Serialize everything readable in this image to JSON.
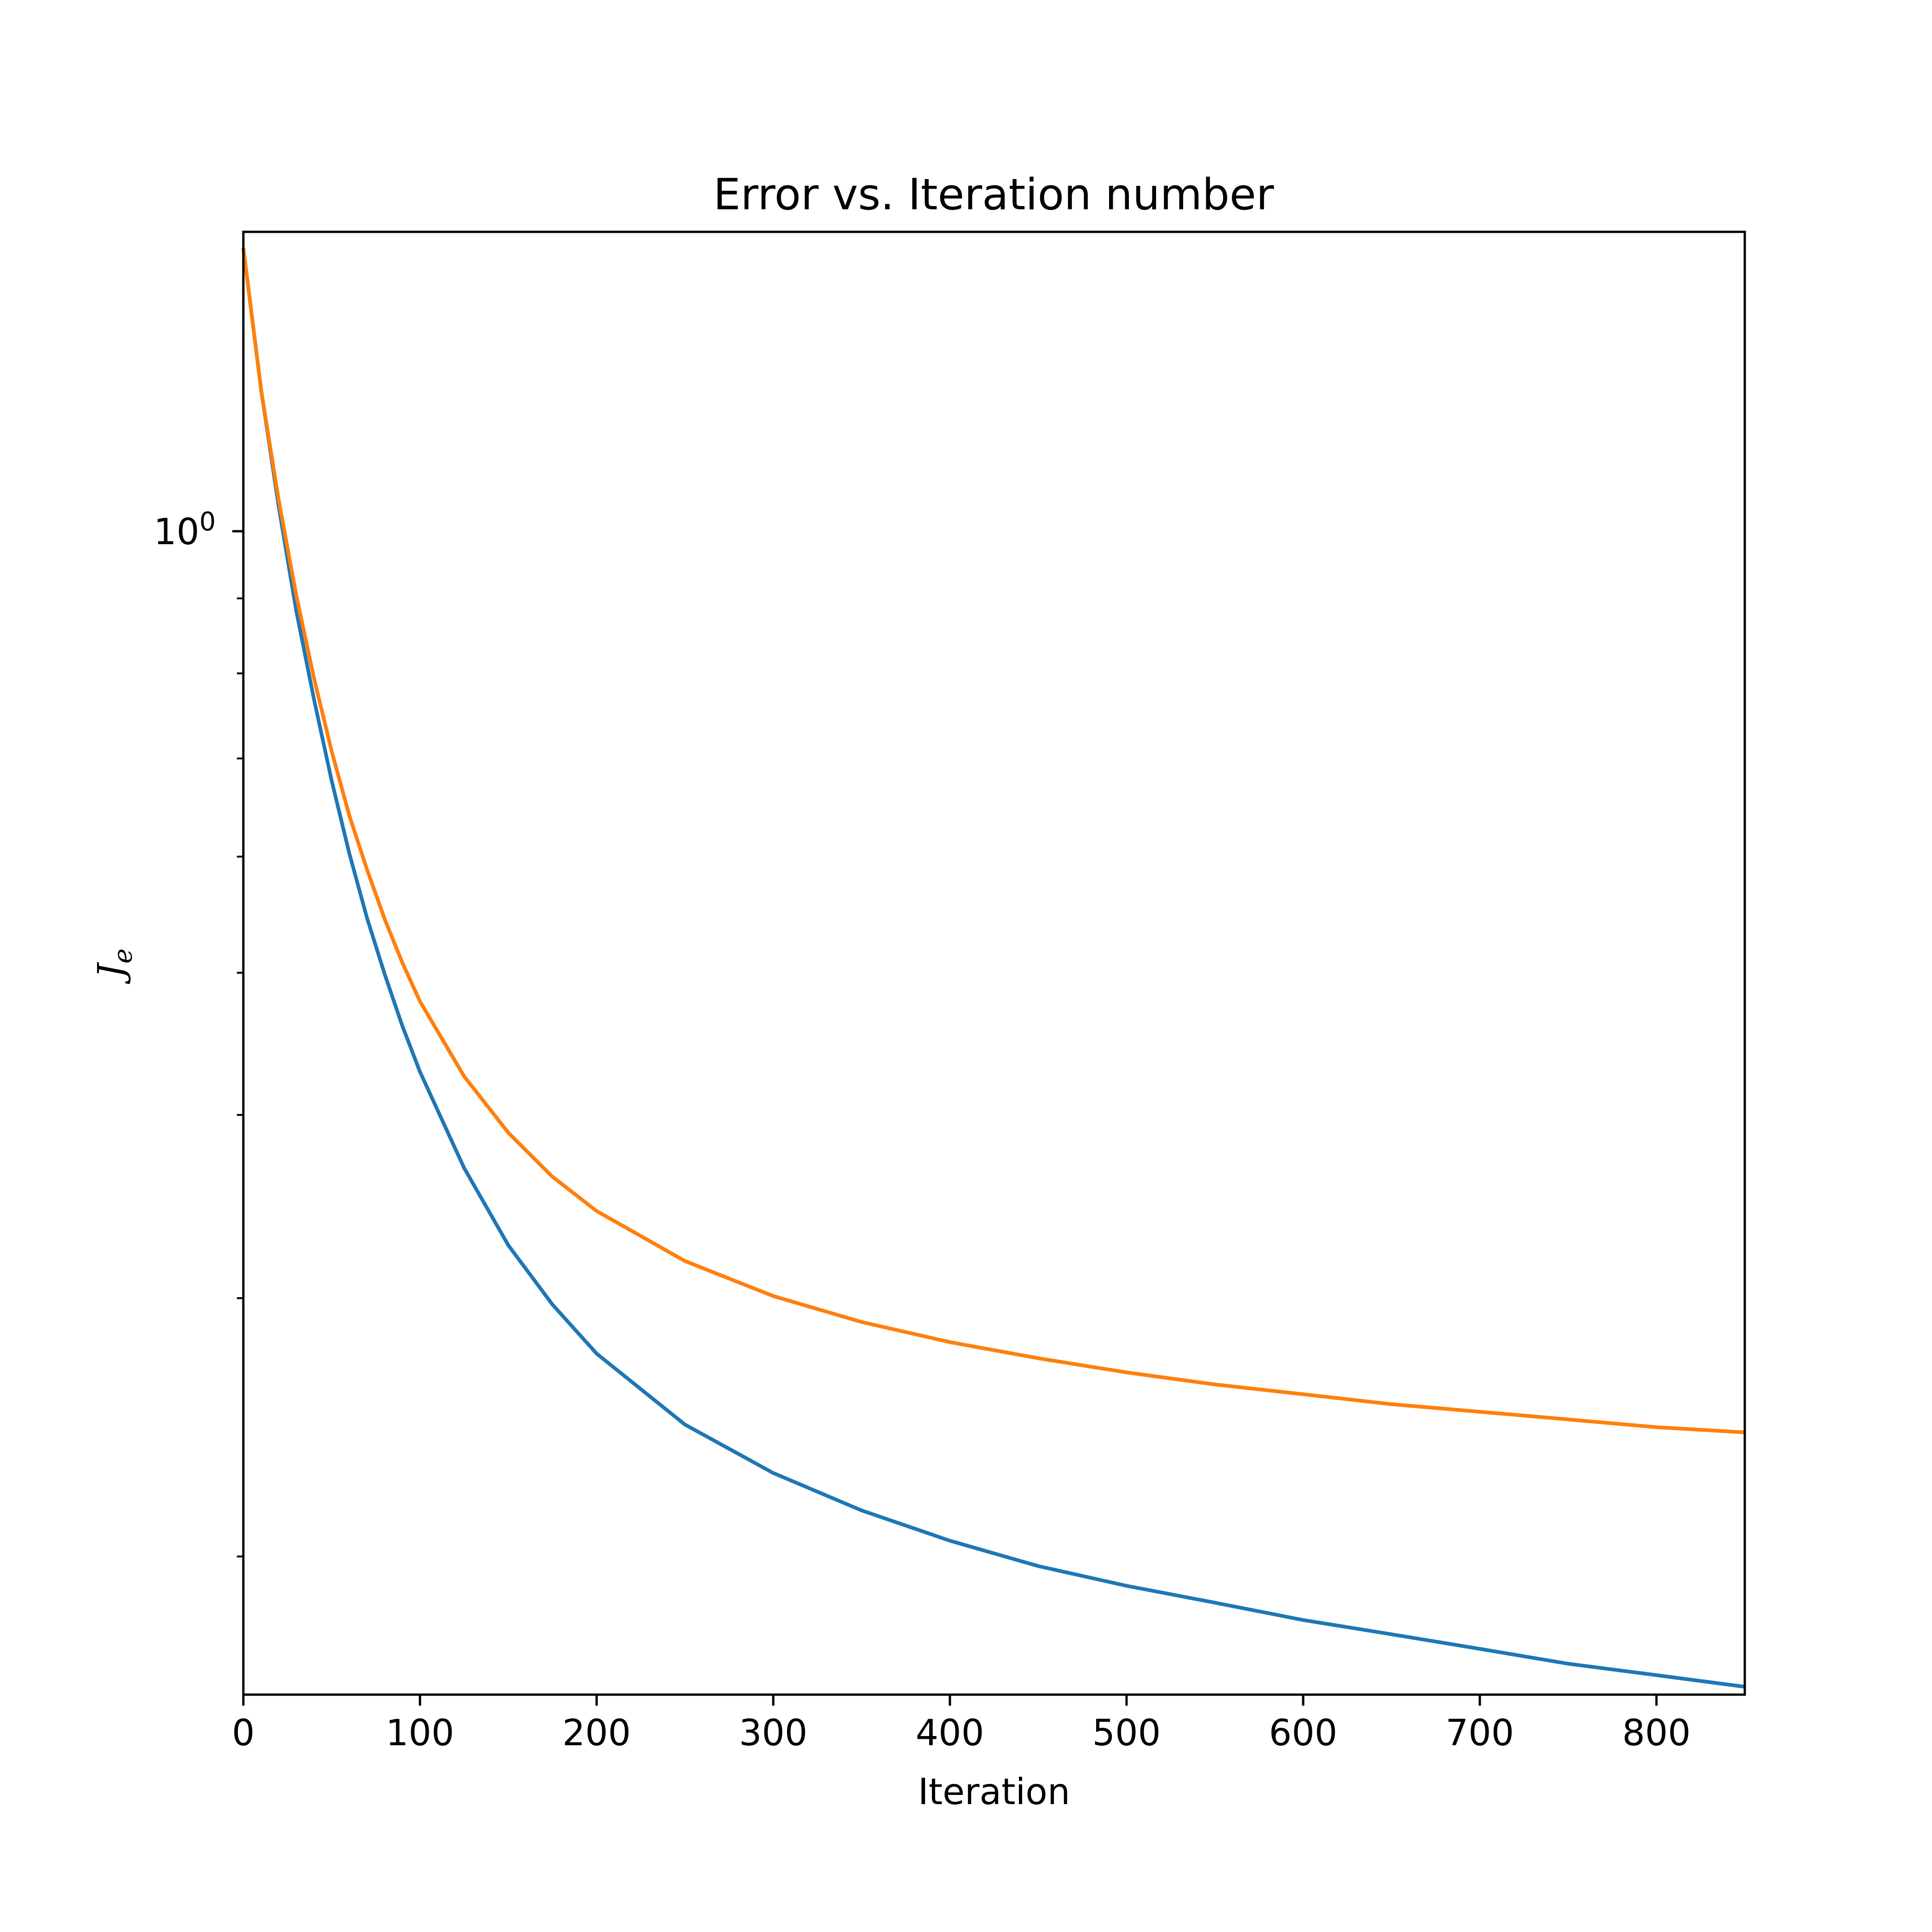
{
  "chart_data": {
    "type": "line",
    "title": "Error vs. Iteration number",
    "xlabel": "Iteration",
    "ylabel_main": "J",
    "ylabel_sub": "e",
    "xlim": [
      0,
      850
    ],
    "ylim": [
      0.161,
      1.6
    ],
    "yscale": "log",
    "xticks": [
      {
        "value": 0,
        "label": "0"
      },
      {
        "value": 100,
        "label": "100"
      },
      {
        "value": 200,
        "label": "200"
      },
      {
        "value": 300,
        "label": "300"
      },
      {
        "value": 400,
        "label": "400"
      },
      {
        "value": 500,
        "label": "500"
      },
      {
        "value": 600,
        "label": "600"
      },
      {
        "value": 700,
        "label": "700"
      },
      {
        "value": 800,
        "label": "800"
      }
    ],
    "yticks_major": [
      {
        "value": 1.0,
        "base": "10",
        "exp": "0"
      }
    ],
    "yticks_minor": [
      0.2,
      0.3,
      0.4,
      0.5,
      0.6,
      0.7,
      0.8,
      0.9
    ],
    "grid": false,
    "legend": "none",
    "series": [
      {
        "color": "#1f77b4",
        "x": [
          0,
          10,
          20,
          30,
          40,
          50,
          60,
          70,
          80,
          90,
          100,
          125,
          150,
          175,
          200,
          250,
          300,
          350,
          400,
          450,
          500,
          550,
          600,
          650,
          700,
          750,
          800,
          850
        ],
        "y": [
          1.56,
          1.25,
          1.04,
          0.882,
          0.768,
          0.676,
          0.603,
          0.545,
          0.499,
          0.46,
          0.428,
          0.368,
          0.326,
          0.297,
          0.275,
          0.246,
          0.228,
          0.215,
          0.205,
          0.197,
          0.191,
          0.186,
          0.181,
          0.177,
          0.173,
          0.169,
          0.166,
          0.163
        ]
      },
      {
        "color": "#ff7f0e",
        "x": [
          0,
          10,
          20,
          30,
          40,
          50,
          60,
          70,
          80,
          90,
          100,
          125,
          150,
          175,
          200,
          250,
          300,
          350,
          400,
          450,
          500,
          550,
          600,
          650,
          700,
          750,
          800,
          850
        ],
        "y": [
          1.56,
          1.25,
          1.05,
          0.904,
          0.794,
          0.708,
          0.64,
          0.588,
          0.544,
          0.508,
          0.478,
          0.425,
          0.389,
          0.363,
          0.344,
          0.318,
          0.301,
          0.289,
          0.28,
          0.273,
          0.267,
          0.262,
          0.258,
          0.254,
          0.251,
          0.248,
          0.245,
          0.243
        ]
      }
    ]
  }
}
